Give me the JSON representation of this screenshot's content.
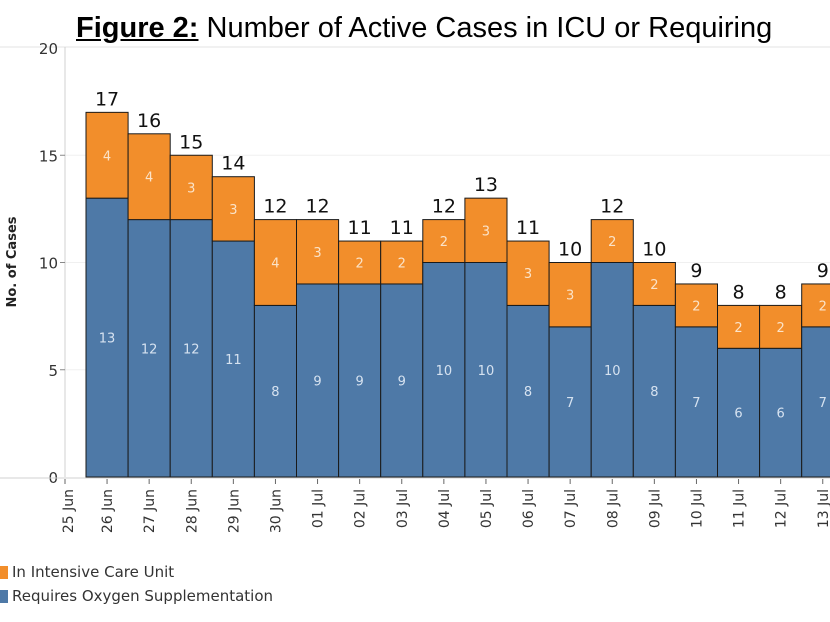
{
  "title": {
    "prefix": "Figure 2:",
    "text": " Number of Active Cases in ICU or Requiring"
  },
  "colors": {
    "icu": "#F28E2B",
    "oxygen": "#4E79A7",
    "outline": "#1a1a1a",
    "icu_label": "#FBE3C8",
    "oxygen_label": "#D6E2F0"
  },
  "chart_data": {
    "type": "bar",
    "stacked": true,
    "title": "Figure 2: Number of Active Cases in ICU or Requiring",
    "xlabel": "",
    "ylabel": "No. of Cases",
    "ylim": [
      0,
      20
    ],
    "yticks": [
      0,
      5,
      10,
      15,
      20
    ],
    "grid": true,
    "legend_position": "bottom-left",
    "x_tick_labels": [
      "25 Jun",
      "26 Jun",
      "27 Jun",
      "28 Jun",
      "29 Jun",
      "30 Jun",
      "01 Jul",
      "02 Jul",
      "03 Jul",
      "04 Jul",
      "05 Jul",
      "06 Jul",
      "07 Jul",
      "08 Jul",
      "09 Jul",
      "10 Jul",
      "11 Jul",
      "12 Jul",
      "13 Jul"
    ],
    "categories": [
      "26 Jun",
      "27 Jun",
      "28 Jun",
      "29 Jun",
      "30 Jun",
      "01 Jul",
      "02 Jul",
      "03 Jul",
      "04 Jul",
      "05 Jul",
      "06 Jul",
      "07 Jul",
      "08 Jul",
      "09 Jul",
      "10 Jul",
      "11 Jul",
      "12 Jul",
      "13 Jul"
    ],
    "series": [
      {
        "name": "Requires Oxygen Supplementation",
        "key": "oxygen",
        "values": [
          13,
          12,
          12,
          11,
          8,
          9,
          9,
          9,
          10,
          10,
          8,
          7,
          10,
          8,
          7,
          6,
          6,
          7
        ]
      },
      {
        "name": "In Intensive Care Unit",
        "key": "icu",
        "values": [
          4,
          4,
          3,
          3,
          4,
          3,
          2,
          2,
          2,
          3,
          3,
          3,
          2,
          2,
          2,
          2,
          2,
          2
        ]
      }
    ],
    "totals": [
      17,
      16,
      15,
      14,
      12,
      12,
      11,
      11,
      12,
      13,
      11,
      10,
      12,
      10,
      9,
      8,
      8,
      9
    ]
  },
  "legend": [
    {
      "label": "In Intensive Care Unit",
      "key": "icu"
    },
    {
      "label": "Requires Oxygen Supplementation",
      "key": "oxygen"
    }
  ]
}
